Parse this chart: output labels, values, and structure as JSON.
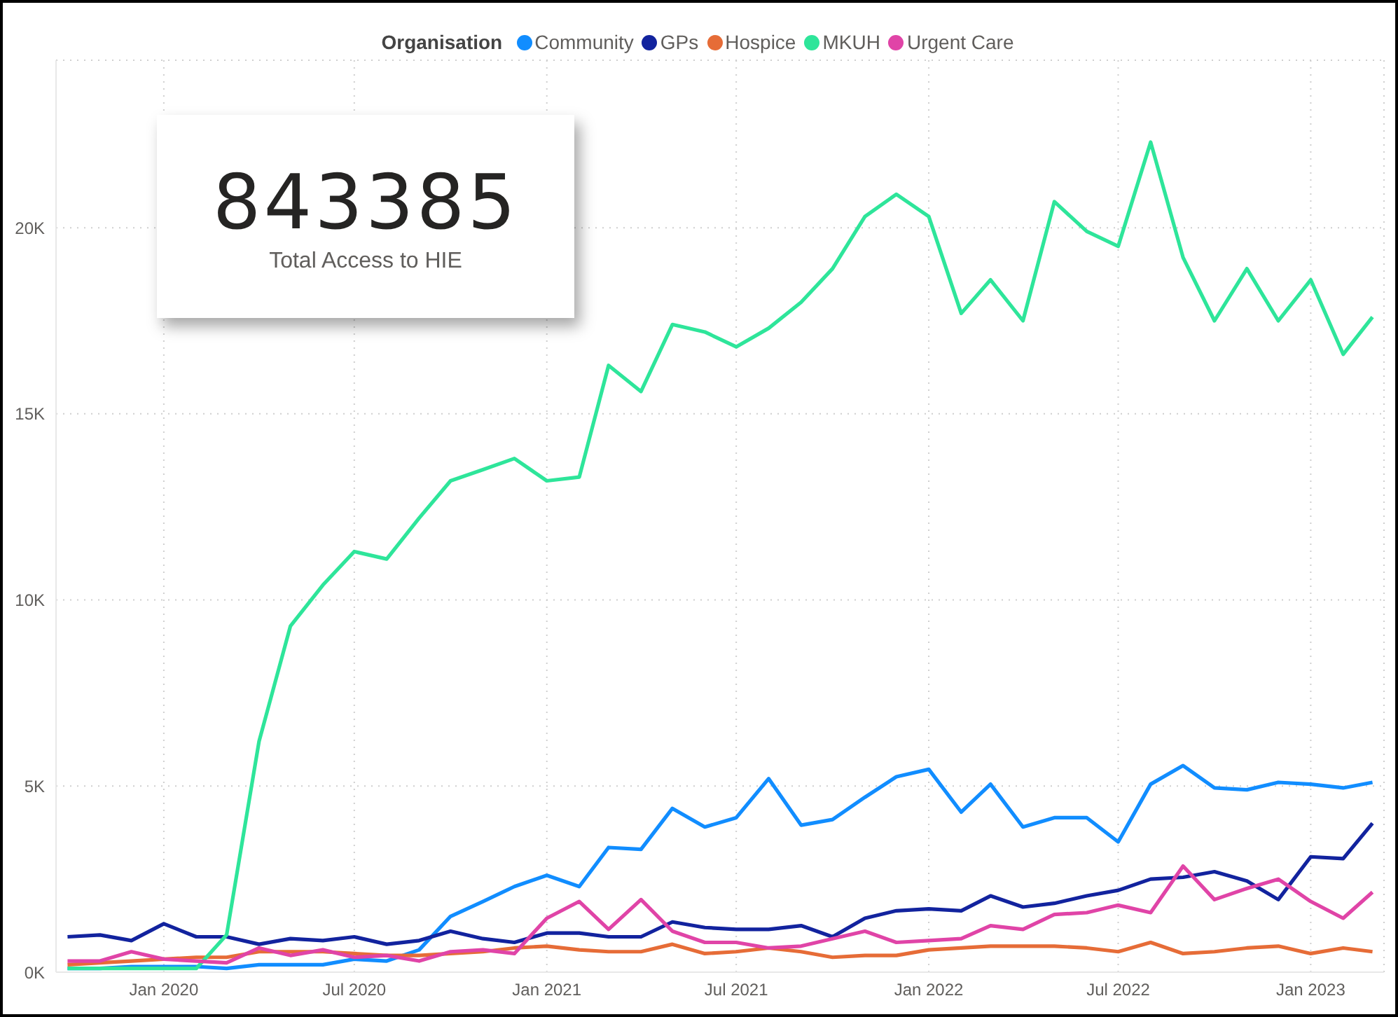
{
  "chart_data": {
    "type": "line",
    "legend_title": "Organisation",
    "legend": "top",
    "grid": true,
    "line_style": "solid",
    "annotations": [
      "843385",
      "Total Access to HIE"
    ],
    "x": [
      "2019-10",
      "2019-11",
      "2019-12",
      "2020-01",
      "2020-02",
      "2020-03",
      "2020-04",
      "2020-05",
      "2020-06",
      "2020-07",
      "2020-08",
      "2020-09",
      "2020-10",
      "2020-11",
      "2020-12",
      "2021-01",
      "2021-02",
      "2021-03",
      "2021-04",
      "2021-05",
      "2021-06",
      "2021-07",
      "2021-08",
      "2021-09",
      "2021-10",
      "2021-11",
      "2021-12",
      "2022-01",
      "2022-02",
      "2022-03",
      "2022-04",
      "2022-05",
      "2022-06",
      "2022-07",
      "2022-08",
      "2022-09",
      "2022-10",
      "2022-11",
      "2022-12",
      "2023-01",
      "2023-02",
      "2023-03"
    ],
    "xlim": [
      "2019-09-20",
      "2023-03-12"
    ],
    "xticks": [
      {
        "value": "2020-01",
        "label": "Jan 2020"
      },
      {
        "value": "2020-07",
        "label": "Jul 2020"
      },
      {
        "value": "2021-01",
        "label": "Jan 2021"
      },
      {
        "value": "2021-07",
        "label": "Jul 2021"
      },
      {
        "value": "2022-01",
        "label": "Jan 2022"
      },
      {
        "value": "2022-07",
        "label": "Jul 2022"
      },
      {
        "value": "2023-01",
        "label": "Jan 2023"
      }
    ],
    "ylim": [
      0,
      24500
    ],
    "yticks": [
      {
        "value": 0,
        "label": "0K"
      },
      {
        "value": 5000,
        "label": "5K"
      },
      {
        "value": 10000,
        "label": "10K"
      },
      {
        "value": 15000,
        "label": "15K"
      },
      {
        "value": 20000,
        "label": "20K"
      }
    ],
    "series": [
      {
        "name": "Community",
        "color": "#118dff",
        "values": [
          100,
          100,
          150,
          150,
          150,
          100,
          200,
          200,
          200,
          350,
          300,
          600,
          1500,
          1900,
          2300,
          2600,
          2300,
          3350,
          3300,
          4400,
          3900,
          4150,
          5200,
          3950,
          4100,
          4700,
          5250,
          5450,
          4300,
          5050,
          3900,
          4150,
          4150,
          3500,
          5050,
          5550,
          4950,
          4900,
          5100,
          5050,
          4950,
          5100
        ]
      },
      {
        "name": "GPs",
        "color": "#12239e",
        "values": [
          950,
          1000,
          850,
          1300,
          950,
          950,
          750,
          900,
          850,
          950,
          750,
          850,
          1100,
          900,
          800,
          1050,
          1050,
          950,
          950,
          1350,
          1200,
          1150,
          1150,
          1250,
          950,
          1450,
          1650,
          1700,
          1650,
          2050,
          1750,
          1850,
          2050,
          2200,
          2500,
          2550,
          2700,
          2450,
          1950,
          3100,
          3050,
          4000
        ]
      },
      {
        "name": "Hospice",
        "color": "#e66c37",
        "values": [
          200,
          250,
          300,
          350,
          400,
          400,
          550,
          550,
          550,
          500,
          450,
          450,
          500,
          550,
          650,
          700,
          600,
          550,
          550,
          750,
          500,
          550,
          650,
          550,
          400,
          450,
          450,
          600,
          650,
          700,
          700,
          700,
          650,
          550,
          800,
          500,
          550,
          650,
          700,
          500,
          650,
          550
        ]
      },
      {
        "name": "MKUH",
        "color": "#2ee59a",
        "values": [
          100,
          100,
          100,
          100,
          100,
          1000,
          6200,
          9300,
          10400,
          11300,
          11100,
          12200,
          13200,
          13500,
          13800,
          13200,
          13300,
          16300,
          15600,
          17400,
          17200,
          16800,
          17300,
          18000,
          18900,
          20300,
          20900,
          20300,
          17700,
          18600,
          17500,
          20700,
          19900,
          19500,
          22300,
          19200,
          17500,
          18900,
          17500,
          18600,
          16600,
          17600
        ]
      },
      {
        "name": "Urgent Care",
        "color": "#e044a7",
        "values": [
          300,
          300,
          550,
          350,
          300,
          250,
          650,
          450,
          600,
          400,
          450,
          300,
          550,
          600,
          500,
          1450,
          1900,
          1150,
          1950,
          1100,
          800,
          800,
          650,
          700,
          900,
          1100,
          800,
          850,
          900,
          1250,
          1150,
          1550,
          1600,
          1800,
          1600,
          2850,
          1950,
          2250,
          2500,
          1900,
          1450,
          2150
        ]
      }
    ]
  }
}
